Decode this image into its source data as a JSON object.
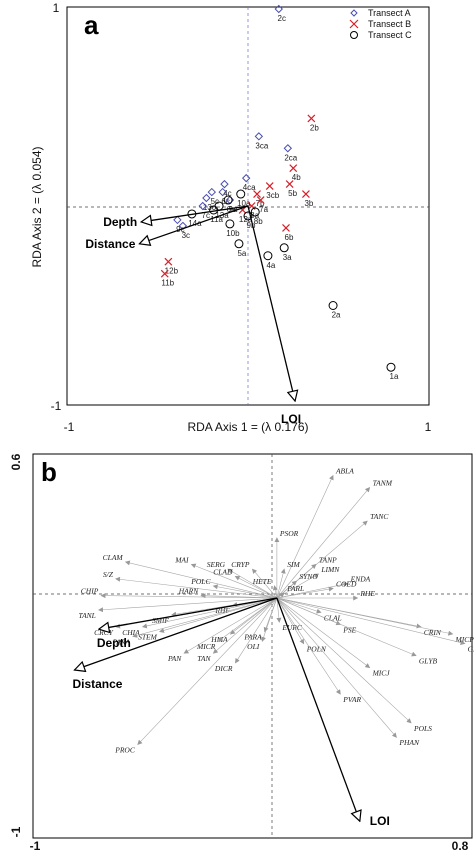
{
  "chart_data": [
    {
      "type": "scatter",
      "panel_label": "a",
      "xlabel": "RDA Axis 1 = (λ 0.176)",
      "ylabel": "RDA Axis 2 = (λ 0.054)",
      "xlim": [
        -1,
        1
      ],
      "ylim": [
        -1,
        1
      ],
      "x_ticks": [
        "-1",
        "1"
      ],
      "y_ticks": [
        "1",
        "-1"
      ],
      "legend": {
        "position": "top-right",
        "entries": [
          {
            "name": "Transect A",
            "marker": "diamond",
            "color": "#4a4fb0"
          },
          {
            "name": "Transect B",
            "marker": "cross",
            "color": "#d8202a"
          },
          {
            "name": "Transect C",
            "marker": "circle",
            "color": "#000000"
          }
        ]
      },
      "points": [
        {
          "label": "2c",
          "x": 0.17,
          "y": 0.99,
          "transect": "A"
        },
        {
          "label": "3ca",
          "x": 0.06,
          "y": 0.35,
          "transect": "A"
        },
        {
          "label": "2ca",
          "x": 0.22,
          "y": 0.29,
          "transect": "A"
        },
        {
          "label": "4ca",
          "x": -0.01,
          "y": 0.14,
          "transect": "A"
        },
        {
          "label": "4c",
          "x": -0.13,
          "y": 0.11,
          "transect": "A"
        },
        {
          "label": "5c",
          "x": -0.2,
          "y": 0.07,
          "transect": "A"
        },
        {
          "label": "6c",
          "x": -0.14,
          "y": 0.07,
          "transect": "A"
        },
        {
          "label": "13c",
          "x": -0.23,
          "y": 0.04,
          "transect": "A"
        },
        {
          "label": "9a",
          "x": -0.1,
          "y": 0.03,
          "transect": "A"
        },
        {
          "label": "7c",
          "x": -0.25,
          "y": 0.0,
          "transect": "A"
        },
        {
          "label": "9c",
          "x": -0.39,
          "y": -0.07,
          "transect": "A"
        },
        {
          "label": "3c",
          "x": -0.36,
          "y": -0.1,
          "transect": "A"
        },
        {
          "label": "2b",
          "x": 0.35,
          "y": 0.44,
          "transect": "B"
        },
        {
          "label": "4b",
          "x": 0.25,
          "y": 0.19,
          "transect": "B"
        },
        {
          "label": "5b",
          "x": 0.23,
          "y": 0.11,
          "transect": "B"
        },
        {
          "label": "3b",
          "x": 0.32,
          "y": 0.06,
          "transect": "B"
        },
        {
          "label": "3cb",
          "x": 0.12,
          "y": 0.1,
          "transect": "B"
        },
        {
          "label": "7b",
          "x": 0.05,
          "y": 0.06,
          "transect": "B"
        },
        {
          "label": "7a",
          "x": 0.07,
          "y": 0.03,
          "transect": "B"
        },
        {
          "label": "8a",
          "x": 0.02,
          "y": 0.0,
          "transect": "B"
        },
        {
          "label": "12a",
          "x": -0.03,
          "y": -0.02,
          "transect": "B"
        },
        {
          "label": "6b",
          "x": 0.21,
          "y": -0.11,
          "transect": "B"
        },
        {
          "label": "12b",
          "x": -0.44,
          "y": -0.28,
          "transect": "B"
        },
        {
          "label": "11b",
          "x": -0.46,
          "y": -0.34,
          "transect": "B"
        },
        {
          "label": "10a",
          "x": -0.04,
          "y": 0.06,
          "transect": "C"
        },
        {
          "label": "6a",
          "x": -0.11,
          "y": 0.03,
          "transect": "C"
        },
        {
          "label": "13a",
          "x": -0.16,
          "y": 0.0,
          "transect": "C"
        },
        {
          "label": "11a",
          "x": -0.19,
          "y": -0.02,
          "transect": "C"
        },
        {
          "label": "14a",
          "x": -0.31,
          "y": -0.04,
          "transect": "C"
        },
        {
          "label": "9b",
          "x": 0.0,
          "y": -0.05,
          "transect": "C"
        },
        {
          "label": "8b",
          "x": 0.04,
          "y": -0.03,
          "transect": "C"
        },
        {
          "label": "10b",
          "x": -0.1,
          "y": -0.09,
          "transect": "C"
        },
        {
          "label": "5a",
          "x": -0.05,
          "y": -0.19,
          "transect": "C"
        },
        {
          "label": "3a",
          "x": 0.2,
          "y": -0.21,
          "transect": "C"
        },
        {
          "label": "4a",
          "x": 0.11,
          "y": -0.25,
          "transect": "C"
        },
        {
          "label": "2a",
          "x": 0.47,
          "y": -0.5,
          "transect": "C"
        },
        {
          "label": "1a",
          "x": 0.79,
          "y": -0.81,
          "transect": "C"
        }
      ],
      "env_vectors": [
        {
          "name": "Depth",
          "x": -0.59,
          "y": -0.08
        },
        {
          "name": "Distance",
          "x": -0.6,
          "y": -0.19
        },
        {
          "name": "LOI",
          "x": 0.26,
          "y": -0.98
        }
      ]
    },
    {
      "type": "scatter",
      "panel_label": "b",
      "xlim": [
        -1,
        0.8
      ],
      "ylim": [
        -1,
        0.6
      ],
      "x_ticks": [
        "-1",
        "0.8"
      ],
      "y_ticks": [
        "0.6",
        "-1"
      ],
      "species": [
        {
          "name": "ABLA",
          "x": 0.23,
          "y": 0.51
        },
        {
          "name": "TANM",
          "x": 0.38,
          "y": 0.46
        },
        {
          "name": "TANC",
          "x": 0.37,
          "y": 0.32
        },
        {
          "name": "PSOR",
          "x": 0.0,
          "y": 0.25
        },
        {
          "name": "TANP",
          "x": 0.16,
          "y": 0.14
        },
        {
          "name": "LIMN",
          "x": 0.17,
          "y": 0.1
        },
        {
          "name": "CRYP",
          "x": -0.1,
          "y": 0.12
        },
        {
          "name": "SIM",
          "x": 0.03,
          "y": 0.12
        },
        {
          "name": "SERG",
          "x": -0.2,
          "y": 0.12
        },
        {
          "name": "MAI",
          "x": -0.35,
          "y": 0.14
        },
        {
          "name": "CLAM",
          "x": -0.62,
          "y": 0.15
        },
        {
          "name": "CLAD",
          "x": -0.17,
          "y": 0.09
        },
        {
          "name": "SYNO",
          "x": 0.08,
          "y": 0.07
        },
        {
          "name": "ENDA",
          "x": 0.29,
          "y": 0.06
        },
        {
          "name": "HETE",
          "x": -0.01,
          "y": 0.05
        },
        {
          "name": "COED",
          "x": 0.23,
          "y": 0.04
        },
        {
          "name": "S/Z",
          "x": -0.66,
          "y": 0.08
        },
        {
          "name": "POLC",
          "x": -0.26,
          "y": 0.05
        },
        {
          "name": "PARL",
          "x": 0.03,
          "y": 0.02
        },
        {
          "name": "HARN",
          "x": -0.31,
          "y": 0.01
        },
        {
          "name": "CHIP",
          "x": -0.72,
          "y": 0.01
        },
        {
          "name": "RHE",
          "x": 0.33,
          "y": 0.0
        },
        {
          "name": "RHF",
          "x": -0.18,
          "y": -0.03
        },
        {
          "name": "TANL",
          "x": -0.73,
          "y": -0.05
        },
        {
          "name": "SMIF",
          "x": -0.43,
          "y": -0.07
        },
        {
          "name": "CHIA",
          "x": -0.55,
          "y": -0.12
        },
        {
          "name": "CRCY",
          "x": -0.66,
          "y": -0.12
        },
        {
          "name": "STEM",
          "x": -0.48,
          "y": -0.14
        },
        {
          "name": "PARA",
          "x": -0.59,
          "y": -0.16
        },
        {
          "name": "HMA",
          "x": -0.19,
          "y": -0.15
        },
        {
          "name": "MICR",
          "x": -0.24,
          "y": -0.18
        },
        {
          "name": "PAN",
          "x": -0.38,
          "y": -0.23
        },
        {
          "name": "TAN",
          "x": -0.26,
          "y": -0.23
        },
        {
          "name": "EURC",
          "x": 0.01,
          "y": -0.1
        },
        {
          "name": "PARA",
          "x": -0.05,
          "y": -0.14
        },
        {
          "name": "OLI",
          "x": -0.06,
          "y": -0.18
        },
        {
          "name": "CLAL",
          "x": 0.18,
          "y": -0.06
        },
        {
          "name": "PSE",
          "x": 0.26,
          "y": -0.11
        },
        {
          "name": "POLN",
          "x": 0.11,
          "y": -0.19
        },
        {
          "name": "DICR",
          "x": -0.17,
          "y": -0.27
        },
        {
          "name": "CRIN",
          "x": 0.59,
          "y": -0.12
        },
        {
          "name": "MICP",
          "x": 0.72,
          "y": -0.15
        },
        {
          "name": "GLYP",
          "x": 0.77,
          "y": -0.19
        },
        {
          "name": "GLYB",
          "x": 0.57,
          "y": -0.24
        },
        {
          "name": "MICJ",
          "x": 0.38,
          "y": -0.29
        },
        {
          "name": "PVAR",
          "x": 0.26,
          "y": -0.4
        },
        {
          "name": "POLS",
          "x": 0.55,
          "y": -0.52
        },
        {
          "name": "PHAN",
          "x": 0.49,
          "y": -0.58
        },
        {
          "name": "PROC",
          "x": -0.57,
          "y": -0.61
        }
      ],
      "env_vectors": [
        {
          "name": "Depth",
          "x": -0.73,
          "y": -0.13
        },
        {
          "name": "Distance",
          "x": -0.83,
          "y": -0.3
        },
        {
          "name": "LOI",
          "x": 0.34,
          "y": -0.93
        }
      ]
    }
  ]
}
